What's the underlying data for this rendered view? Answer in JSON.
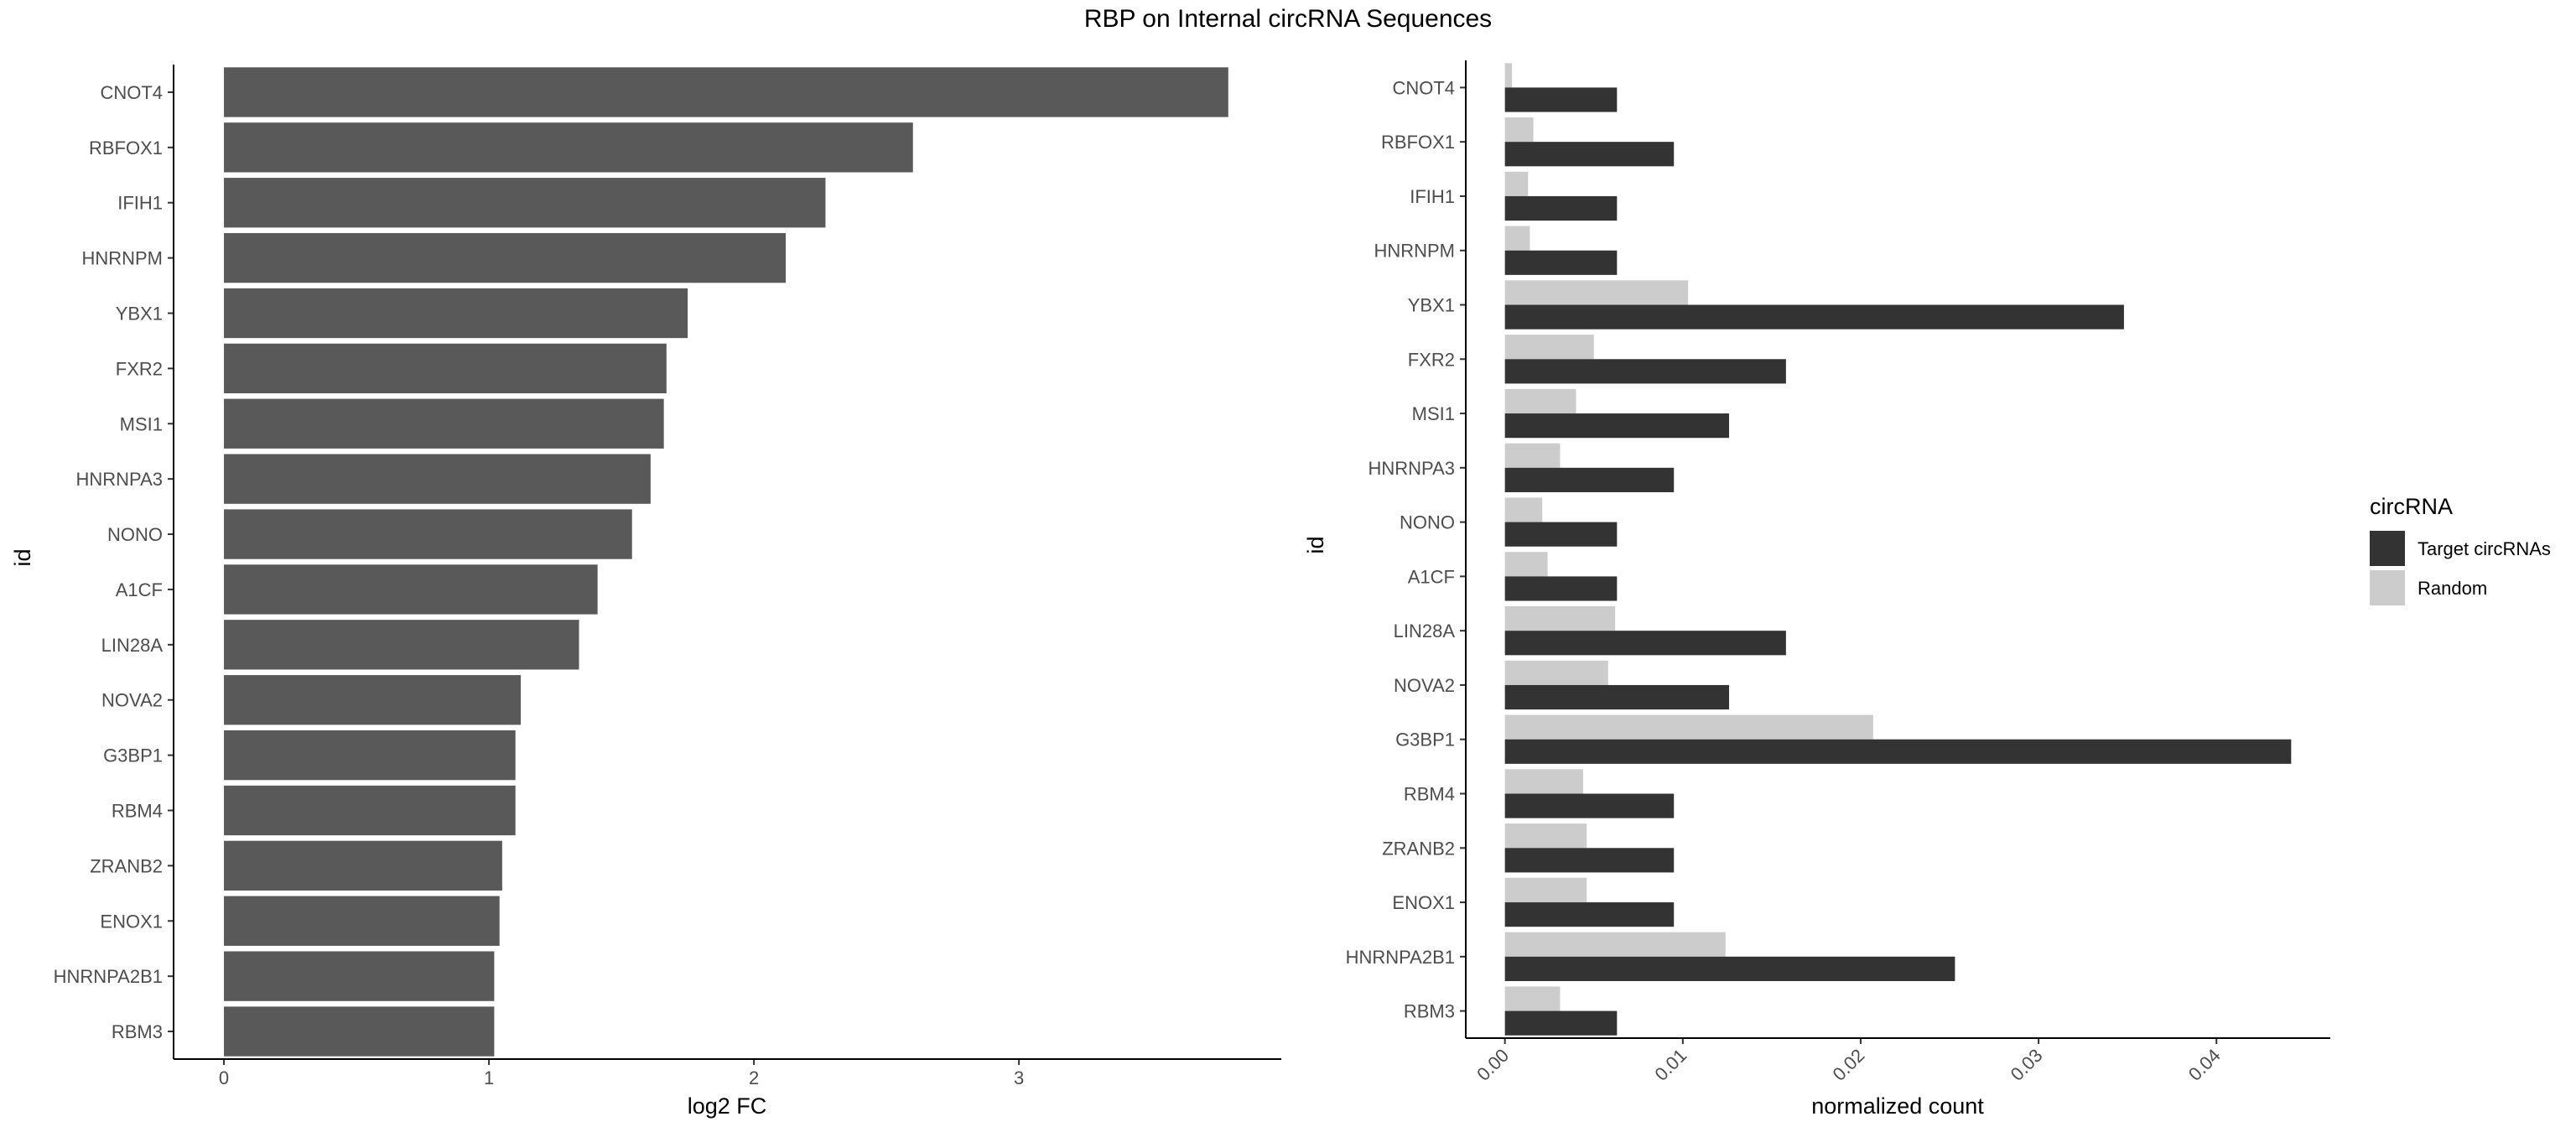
{
  "figure": {
    "title": "RBP on Internal circRNA Sequences"
  },
  "chart_data": [
    {
      "type": "bar",
      "orientation": "horizontal",
      "categories": [
        "CNOT4",
        "RBFOX1",
        "IFIH1",
        "HNRNPM",
        "YBX1",
        "FXR2",
        "MSI1",
        "HNRNPA3",
        "NONO",
        "A1CF",
        "LIN28A",
        "NOVA2",
        "G3BP1",
        "RBM4",
        "ZRANB2",
        "ENOX1",
        "HNRNPA2B1",
        "RBM3"
      ],
      "values": [
        3.79,
        2.6,
        2.27,
        2.12,
        1.75,
        1.67,
        1.66,
        1.61,
        1.54,
        1.41,
        1.34,
        1.12,
        1.1,
        1.1,
        1.05,
        1.04,
        1.02,
        1.02
      ],
      "xlabel": "log2 FC",
      "ylabel": "id",
      "xlim": [
        -0.19,
        3.99
      ],
      "xticks": [
        "0",
        "1",
        "2",
        "3"
      ],
      "bar_color": "#595959",
      "grid": false
    },
    {
      "type": "bar",
      "orientation": "horizontal",
      "categories": [
        "CNOT4",
        "RBFOX1",
        "IFIH1",
        "HNRNPM",
        "YBX1",
        "FXR2",
        "MSI1",
        "HNRNPA3",
        "NONO",
        "A1CF",
        "LIN28A",
        "NOVA2",
        "G3BP1",
        "RBM4",
        "ZRANB2",
        "ENOX1",
        "HNRNPA2B1",
        "RBM3"
      ],
      "series": [
        {
          "name": "Target circRNAs",
          "color": "#333333",
          "values": [
            0.0063,
            0.0095,
            0.0063,
            0.0063,
            0.0348,
            0.0158,
            0.0126,
            0.0095,
            0.0063,
            0.0063,
            0.0158,
            0.0126,
            0.0442,
            0.0095,
            0.0095,
            0.0095,
            0.0253,
            0.0063
          ]
        },
        {
          "name": "Random",
          "color": "#cccccc",
          "values": [
            0.0004,
            0.0016,
            0.0013,
            0.0014,
            0.0103,
            0.005,
            0.004,
            0.0031,
            0.0021,
            0.0024,
            0.0062,
            0.0058,
            0.0207,
            0.0044,
            0.0046,
            0.0046,
            0.0124,
            0.0031
          ]
        }
      ],
      "xlabel": "normalized count",
      "ylabel": "id",
      "xlim": [
        -0.0022,
        0.0464
      ],
      "xticks": [
        "0.00",
        "0.01",
        "0.02",
        "0.03",
        "0.04"
      ],
      "tick_label_rotation": "45 degrees",
      "legend": {
        "title": "circRNA",
        "placement": "right"
      },
      "grid": false
    }
  ]
}
